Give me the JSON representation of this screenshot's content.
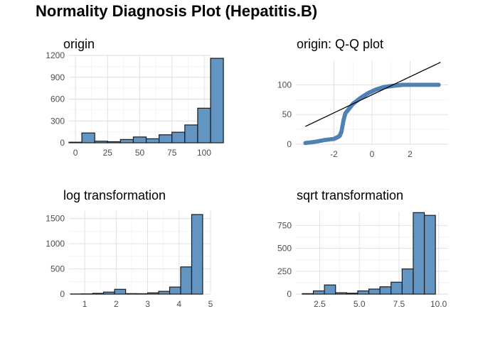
{
  "title": "Normality Diagnosis Plot (Hepatitis.B)",
  "colors": {
    "bar_fill": "#6395c2",
    "bar_stroke": "#1a1a1a",
    "point": "#4f81b4",
    "line": "#000000"
  },
  "chart_data": [
    {
      "type": "bar",
      "title": "origin",
      "xlabel": "",
      "ylabel": "",
      "xlim": [
        -5,
        105
      ],
      "ylim": [
        0,
        1200
      ],
      "xticks": [
        0,
        25,
        50,
        75,
        100
      ],
      "yticks": [
        0,
        300,
        600,
        900,
        1200
      ],
      "bins": [
        {
          "x0": -5,
          "x1": 5,
          "count": 8
        },
        {
          "x0": 5,
          "x1": 15,
          "count": 135
        },
        {
          "x0": 15,
          "x1": 25,
          "count": 22
        },
        {
          "x0": 25,
          "x1": 35,
          "count": 15
        },
        {
          "x0": 35,
          "x1": 45,
          "count": 45
        },
        {
          "x0": 45,
          "x1": 55,
          "count": 80
        },
        {
          "x0": 55,
          "x1": 65,
          "count": 55
        },
        {
          "x0": 65,
          "x1": 75,
          "count": 110
        },
        {
          "x0": 75,
          "x1": 85,
          "count": 145
        },
        {
          "x0": 85,
          "x1": 95,
          "count": 245
        },
        {
          "x0": 95,
          "x1": 105,
          "count": 475
        },
        {
          "x0": 105,
          "x1": 115,
          "count": 1160
        }
      ]
    },
    {
      "type": "scatter",
      "title": "origin: Q-Q plot",
      "xlabel": "",
      "ylabel": "",
      "xlim": [
        -4,
        4
      ],
      "ylim": [
        0,
        140
      ],
      "xticks": [
        -2,
        0,
        2
      ],
      "yticks": [
        0,
        50,
        100
      ],
      "reference_line": [
        [
          -3.5,
          30
        ],
        [
          3.6,
          138
        ]
      ],
      "curve": [
        [
          -3.5,
          2
        ],
        [
          -3.0,
          4
        ],
        [
          -2.5,
          7
        ],
        [
          -2.0,
          9
        ],
        [
          -1.8,
          12
        ],
        [
          -1.7,
          14
        ],
        [
          -1.6,
          22
        ],
        [
          -1.5,
          40
        ],
        [
          -1.4,
          52
        ],
        [
          -1.2,
          60
        ],
        [
          -1.0,
          68
        ],
        [
          -0.8,
          73
        ],
        [
          -0.6,
          78
        ],
        [
          -0.4,
          82
        ],
        [
          -0.2,
          86
        ],
        [
          0.0,
          89
        ],
        [
          0.2,
          92
        ],
        [
          0.4,
          94
        ],
        [
          0.6,
          96
        ],
        [
          0.8,
          97
        ],
        [
          1.0,
          98
        ],
        [
          1.3,
          99
        ],
        [
          1.6,
          100
        ],
        [
          2.0,
          100
        ],
        [
          2.5,
          100
        ],
        [
          3.0,
          100
        ],
        [
          3.5,
          100
        ]
      ]
    },
    {
      "type": "bar",
      "title": "log transformation",
      "xlabel": "",
      "ylabel": "",
      "xlim": [
        0.5,
        5.0
      ],
      "ylim": [
        0,
        1650
      ],
      "xticks": [
        1,
        2,
        3,
        4,
        5
      ],
      "yticks": [
        0,
        500,
        1000,
        1500
      ],
      "bins": [
        {
          "x0": 0.55,
          "x1": 0.9,
          "count": 3
        },
        {
          "x0": 0.9,
          "x1": 1.25,
          "count": 5
        },
        {
          "x0": 1.25,
          "x1": 1.6,
          "count": 15
        },
        {
          "x0": 1.6,
          "x1": 1.95,
          "count": 40
        },
        {
          "x0": 1.95,
          "x1": 2.3,
          "count": 95
        },
        {
          "x0": 2.3,
          "x1": 2.65,
          "count": 10
        },
        {
          "x0": 2.65,
          "x1": 3.0,
          "count": 8
        },
        {
          "x0": 3.0,
          "x1": 3.35,
          "count": 25
        },
        {
          "x0": 3.35,
          "x1": 3.7,
          "count": 55
        },
        {
          "x0": 3.7,
          "x1": 4.05,
          "count": 140
        },
        {
          "x0": 4.05,
          "x1": 4.4,
          "count": 540
        },
        {
          "x0": 4.4,
          "x1": 4.75,
          "count": 1580
        }
      ]
    },
    {
      "type": "bar",
      "title": "sqrt transformation",
      "xlabel": "",
      "ylabel": "",
      "xlim": [
        1.0,
        10.6
      ],
      "ylim": [
        0,
        900
      ],
      "xticks": [
        2.5,
        5.0,
        7.5,
        10.0
      ],
      "tick_labels": [
        "2.5",
        "5.0",
        "7.5",
        "10.0"
      ],
      "yticks": [
        0,
        250,
        500,
        750
      ],
      "bins": [
        {
          "x0": 1.4,
          "x1": 2.1,
          "count": 5
        },
        {
          "x0": 2.1,
          "x1": 2.8,
          "count": 35
        },
        {
          "x0": 2.8,
          "x1": 3.5,
          "count": 100
        },
        {
          "x0": 3.5,
          "x1": 4.2,
          "count": 15
        },
        {
          "x0": 4.2,
          "x1": 4.9,
          "count": 10
        },
        {
          "x0": 4.9,
          "x1": 5.6,
          "count": 35
        },
        {
          "x0": 5.6,
          "x1": 6.3,
          "count": 55
        },
        {
          "x0": 6.3,
          "x1": 7.0,
          "count": 80
        },
        {
          "x0": 7.0,
          "x1": 7.7,
          "count": 130
        },
        {
          "x0": 7.7,
          "x1": 8.4,
          "count": 275
        },
        {
          "x0": 8.4,
          "x1": 9.1,
          "count": 890
        },
        {
          "x0": 9.1,
          "x1": 9.8,
          "count": 860
        }
      ]
    }
  ]
}
